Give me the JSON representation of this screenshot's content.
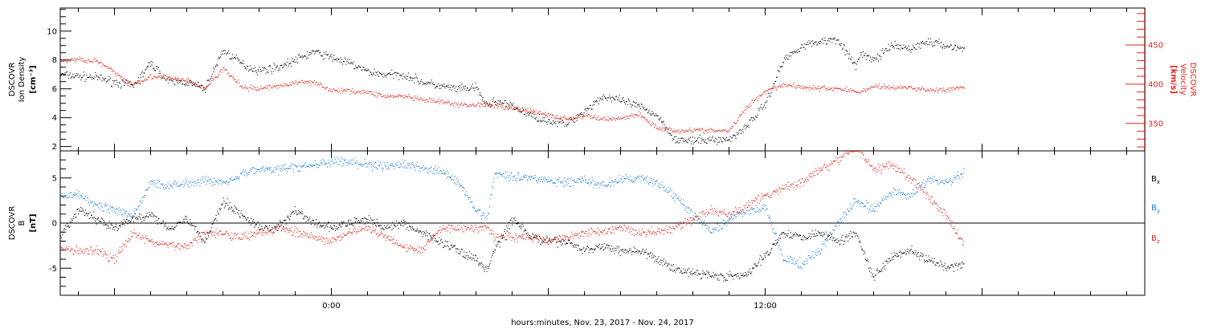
{
  "colors": {
    "axis": "#000000",
    "black": "#000000",
    "red": "#e2231a",
    "blue": "#1c7fd6"
  },
  "xlabel": "hours:minutes, Nov. 23, 2017 - Nov. 24, 2017",
  "x_tick_labels": [
    {
      "t": 0,
      "label": "0:00"
    },
    {
      "t": 12,
      "label": "12:00"
    }
  ],
  "chart_data": [
    {
      "type": "scatter",
      "panel": "top",
      "y_left_label": [
        "DSCOVR",
        "Ion Density",
        "[cm⁻³]"
      ],
      "y_right_label": [
        "DSCOVR",
        "Velocity",
        "[km/s]"
      ],
      "x_unit": "hours relative to 0:00 Nov. 23, 2017",
      "xlim": [
        -7.5,
        22.5
      ],
      "ylim_left": [
        1.7,
        11.6
      ],
      "ylim_right": [
        315,
        497
      ],
      "left_ticks": [
        "2",
        "4",
        "6",
        "8",
        "10"
      ],
      "right_ticks": [
        "350",
        "400",
        "450"
      ],
      "series": [
        {
          "name": "",
          "axis": "left",
          "color": "black",
          "x": [
            -7.5,
            -6.5,
            -5.5,
            -5.0,
            -4.5,
            -4.0,
            -3.5,
            -3.0,
            -2.5,
            -2.3,
            -2.0,
            -1.5,
            -1.0,
            -0.5,
            0.0,
            0.5,
            1.0,
            1.5,
            2.0,
            2.5,
            3.0,
            3.5,
            4.0,
            4.3,
            4.5,
            5.0,
            5.5,
            6.0,
            6.5,
            7.0,
            7.5,
            8.0,
            8.5,
            9.0,
            9.5,
            10.0,
            10.5,
            11.0,
            11.5,
            12.0,
            12.5,
            13.0,
            13.5,
            14.0,
            14.5,
            14.6,
            15.0,
            15.5,
            16.0,
            16.5,
            17.0,
            17.5
          ],
          "y": [
            7.0,
            6.8,
            6.2,
            7.8,
            6.5,
            6.5,
            6.0,
            8.7,
            7.8,
            7.5,
            7.3,
            7.5,
            8.0,
            8.6,
            8.2,
            7.8,
            7.2,
            7.0,
            7.0,
            6.5,
            6.2,
            6.0,
            6.1,
            4.8,
            5.2,
            4.8,
            4.2,
            3.8,
            3.6,
            4.5,
            5.5,
            5.2,
            4.8,
            4.2,
            2.5,
            2.4,
            2.5,
            2.5,
            3.5,
            5.0,
            8.0,
            9.0,
            9.3,
            9.5,
            7.5,
            8.5,
            8.0,
            9.0,
            8.8,
            9.3,
            9.0,
            8.8
          ]
        },
        {
          "name": "",
          "axis": "right",
          "color": "red",
          "x": [
            -7.5,
            -7.0,
            -6.5,
            -6.0,
            -5.5,
            -5.0,
            -4.5,
            -4.0,
            -3.5,
            -3.0,
            -2.5,
            -2.3,
            -2.0,
            -1.5,
            -1.0,
            -0.5,
            0.0,
            0.5,
            1.0,
            1.5,
            2.0,
            2.5,
            3.0,
            3.5,
            4.0,
            4.3,
            4.5,
            5.0,
            5.5,
            6.0,
            6.5,
            7.0,
            7.5,
            8.0,
            8.5,
            9.0,
            9.5,
            10.0,
            10.5,
            11.0,
            11.5,
            12.0,
            12.5,
            13.0,
            13.5,
            14.0,
            14.5,
            14.6,
            15.0,
            15.5,
            16.0,
            16.5,
            17.0,
            17.5
          ],
          "y": [
            430,
            432,
            430,
            415,
            400,
            410,
            408,
            405,
            395,
            420,
            398,
            395,
            395,
            398,
            402,
            404,
            392,
            392,
            390,
            385,
            385,
            380,
            378,
            374,
            374,
            375,
            373,
            370,
            366,
            361,
            356,
            360,
            356,
            357,
            362,
            345,
            341,
            342,
            341,
            341,
            372,
            392,
            400,
            397,
            395,
            395,
            391,
            390,
            398,
            396,
            396,
            393,
            393,
            396
          ]
        }
      ]
    },
    {
      "type": "scatter",
      "panel": "bottom",
      "y_left_label": [
        "DSCOVR",
        "B",
        "[nT]"
      ],
      "x_unit": "hours relative to 0:00 Nov. 23, 2017",
      "xlim": [
        -7.5,
        22.5
      ],
      "ylim": [
        -8,
        8
      ],
      "left_ticks": [
        "-5",
        "0",
        "5"
      ],
      "zero_line": true,
      "series": [
        {
          "name": "Bx",
          "color": "black",
          "x": [
            -7.5,
            -7.0,
            -6.5,
            -6.0,
            -5.5,
            -5.0,
            -4.5,
            -4.0,
            -3.5,
            -3.0,
            -2.5,
            -2.0,
            -1.5,
            -1.0,
            -0.5,
            0.0,
            0.5,
            1.0,
            1.5,
            2.0,
            2.5,
            3.0,
            3.5,
            4.0,
            4.3,
            4.5,
            5.0,
            5.5,
            6.0,
            6.5,
            7.0,
            7.5,
            8.0,
            8.5,
            9.0,
            9.5,
            10.0,
            10.5,
            11.0,
            11.5,
            12.0,
            12.5,
            13.0,
            13.5,
            14.0,
            14.5,
            15.0,
            15.5,
            16.0,
            16.5,
            17.0,
            17.5
          ],
          "y": [
            -1.5,
            1.5,
            0.5,
            -0.5,
            0.5,
            1.0,
            -0.5,
            0.5,
            -2.0,
            2.5,
            1.0,
            -0.5,
            -0.5,
            1.5,
            0.0,
            -0.5,
            0.0,
            0.5,
            -0.5,
            0.0,
            -1.0,
            -2.0,
            -3.0,
            -4.0,
            -5.2,
            -3.0,
            0.5,
            -1.5,
            -2.0,
            -2.0,
            -3.0,
            -2.5,
            -3.0,
            -3.0,
            -4.0,
            -5.0,
            -5.5,
            -5.7,
            -5.9,
            -5.7,
            -3.5,
            -1.0,
            -1.5,
            -1.0,
            -2.0,
            -1.0,
            -6.0,
            -3.5,
            -3.0,
            -4.0,
            -5.0,
            -4.5
          ]
        },
        {
          "name": "By",
          "color": "blue",
          "x": [
            -7.5,
            -7.0,
            -6.5,
            -6.0,
            -5.5,
            -5.0,
            -4.5,
            -4.0,
            -3.5,
            -3.0,
            -2.5,
            -2.0,
            -1.5,
            -1.0,
            -0.5,
            0.0,
            0.5,
            1.0,
            1.5,
            2.0,
            2.5,
            3.0,
            3.5,
            4.0,
            4.3,
            4.5,
            5.0,
            5.5,
            6.0,
            6.5,
            7.0,
            7.5,
            8.0,
            8.5,
            9.0,
            9.5,
            10.0,
            10.5,
            11.0,
            11.5,
            12.0,
            12.5,
            13.0,
            13.5,
            14.0,
            14.5,
            15.0,
            15.5,
            16.0,
            16.5,
            17.0,
            17.5
          ],
          "y": [
            3.0,
            3.2,
            2.0,
            1.5,
            0.8,
            4.5,
            4.2,
            4.5,
            4.8,
            4.5,
            5.5,
            6.0,
            6.0,
            6.2,
            6.5,
            6.8,
            6.8,
            6.5,
            6.3,
            6.5,
            6.2,
            5.8,
            4.5,
            1.5,
            0.5,
            5.5,
            5.3,
            5.0,
            4.8,
            4.5,
            4.8,
            4.2,
            4.8,
            5.0,
            4.5,
            3.0,
            1.0,
            -1.0,
            0.5,
            1.5,
            1.8,
            -4.0,
            -4.5,
            -3.0,
            0.0,
            2.5,
            1.5,
            3.5,
            3.0,
            5.0,
            4.5,
            5.5
          ]
        },
        {
          "name": "Bz",
          "color": "red",
          "x": [
            -7.5,
            -7.0,
            -6.5,
            -6.0,
            -5.5,
            -5.0,
            -4.5,
            -4.0,
            -3.5,
            -3.0,
            -2.5,
            -2.0,
            -1.5,
            -1.0,
            -0.5,
            0.0,
            0.5,
            1.0,
            1.5,
            2.0,
            2.5,
            3.0,
            3.5,
            4.0,
            4.3,
            4.5,
            5.0,
            5.5,
            6.0,
            6.5,
            7.0,
            7.5,
            8.0,
            8.5,
            9.0,
            9.5,
            10.0,
            10.5,
            11.0,
            11.5,
            12.0,
            12.5,
            13.0,
            13.5,
            14.0,
            14.5,
            15.0,
            15.5,
            16.0,
            16.5,
            17.0,
            17.5
          ],
          "y": [
            -2.8,
            -3.0,
            -3.0,
            -4.0,
            -1.0,
            -2.0,
            -2.5,
            -2.5,
            -1.0,
            -1.0,
            -1.5,
            -1.0,
            -0.5,
            -1.0,
            -1.5,
            -2.0,
            -1.0,
            -0.5,
            -1.5,
            -2.5,
            -3.0,
            -0.5,
            -0.5,
            -0.5,
            -0.5,
            -1.5,
            -1.5,
            -1.5,
            -2.0,
            -1.5,
            -1.0,
            -1.0,
            -0.5,
            -1.0,
            -1.0,
            -0.5,
            0.5,
            1.5,
            1.0,
            2.0,
            3.0,
            4.0,
            4.5,
            6.0,
            7.0,
            8.5,
            6.0,
            6.5,
            5.0,
            3.0,
            1.0,
            -2.5
          ]
        }
      ]
    }
  ]
}
